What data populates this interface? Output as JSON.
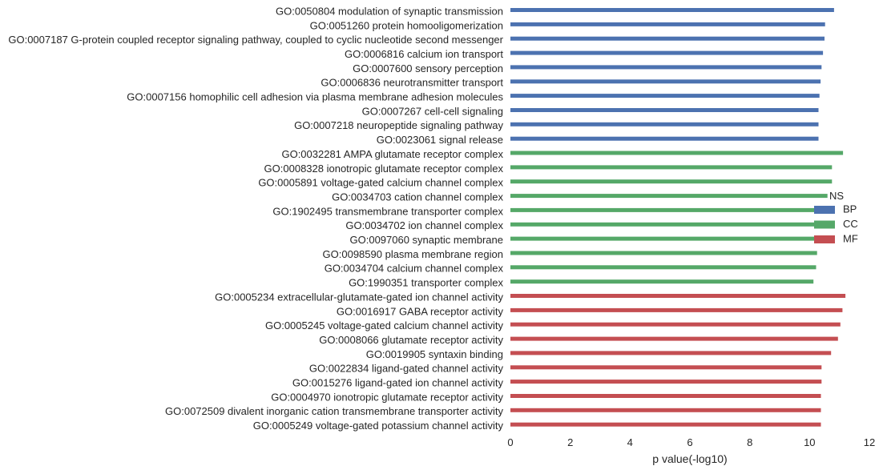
{
  "chart_data": {
    "type": "bar",
    "orientation": "horizontal",
    "xlabel": "p value(-log10)",
    "xlim": [
      0,
      12
    ],
    "xticks": [
      0,
      2,
      4,
      6,
      8,
      10,
      12
    ],
    "grid": false,
    "legend": {
      "title": "NS",
      "placement": "right",
      "entries": [
        {
          "label": "BP",
          "color": "#4c72b0"
        },
        {
          "label": "CC",
          "color": "#55a868"
        },
        {
          "label": "MF",
          "color": "#c44e52"
        }
      ]
    },
    "bars": [
      {
        "label": "GO:0050804 modulation of synaptic transmission",
        "value": 10.82,
        "group": "BP"
      },
      {
        "label": "GO:0051260 protein homooligomerization",
        "value": 10.52,
        "group": "BP"
      },
      {
        "label": "GO:0007187 G-protein coupled receptor signaling pathway, coupled to cyclic nucleotide second messenger",
        "value": 10.5,
        "group": "BP"
      },
      {
        "label": "GO:0006816 calcium ion transport",
        "value": 10.45,
        "group": "BP"
      },
      {
        "label": "GO:0007600 sensory perception",
        "value": 10.4,
        "group": "BP"
      },
      {
        "label": "GO:0006836 neurotransmitter transport",
        "value": 10.37,
        "group": "BP"
      },
      {
        "label": "GO:0007156 homophilic cell adhesion via plasma membrane adhesion molecules",
        "value": 10.33,
        "group": "BP"
      },
      {
        "label": "GO:0007267 cell-cell signaling",
        "value": 10.3,
        "group": "BP"
      },
      {
        "label": "GO:0007218 neuropeptide signaling pathway",
        "value": 10.3,
        "group": "BP"
      },
      {
        "label": "GO:0023061 signal release",
        "value": 10.3,
        "group": "BP"
      },
      {
        "label": "GO:0032281 AMPA glutamate receptor complex",
        "value": 11.12,
        "group": "CC"
      },
      {
        "label": "GO:0008328 ionotropic glutamate receptor complex",
        "value": 10.75,
        "group": "CC"
      },
      {
        "label": "GO:0005891 voltage-gated calcium channel complex",
        "value": 10.75,
        "group": "CC"
      },
      {
        "label": "GO:0034703 cation channel complex",
        "value": 10.6,
        "group": "CC"
      },
      {
        "label": "GO:1902495 transmembrane transporter complex",
        "value": 10.5,
        "group": "CC"
      },
      {
        "label": "GO:0034702 ion channel complex",
        "value": 10.45,
        "group": "CC"
      },
      {
        "label": "GO:0097060 synaptic membrane",
        "value": 10.4,
        "group": "CC"
      },
      {
        "label": "GO:0098590 plasma membrane region",
        "value": 10.25,
        "group": "CC"
      },
      {
        "label": "GO:0034704 calcium channel complex",
        "value": 10.22,
        "group": "CC"
      },
      {
        "label": "GO:1990351 transporter complex",
        "value": 10.13,
        "group": "CC"
      },
      {
        "label": "GO:0005234 extracellular-glutamate-gated ion channel activity",
        "value": 11.2,
        "group": "MF"
      },
      {
        "label": "GO:0016917 GABA receptor activity",
        "value": 11.1,
        "group": "MF"
      },
      {
        "label": "GO:0005245 voltage-gated calcium channel activity",
        "value": 11.03,
        "group": "MF"
      },
      {
        "label": "GO:0008066 glutamate receptor activity",
        "value": 10.95,
        "group": "MF"
      },
      {
        "label": "GO:0019905 syntaxin binding",
        "value": 10.72,
        "group": "MF"
      },
      {
        "label": "GO:0022834 ligand-gated channel activity",
        "value": 10.4,
        "group": "MF"
      },
      {
        "label": "GO:0015276 ligand-gated ion channel activity",
        "value": 10.4,
        "group": "MF"
      },
      {
        "label": "GO:0004970 ionotropic glutamate receptor activity",
        "value": 10.38,
        "group": "MF"
      },
      {
        "label": "GO:0072509 divalent inorganic cation transmembrane transporter activity",
        "value": 10.38,
        "group": "MF"
      },
      {
        "label": "GO:0005249 voltage-gated potassium channel activity",
        "value": 10.38,
        "group": "MF"
      }
    ]
  }
}
